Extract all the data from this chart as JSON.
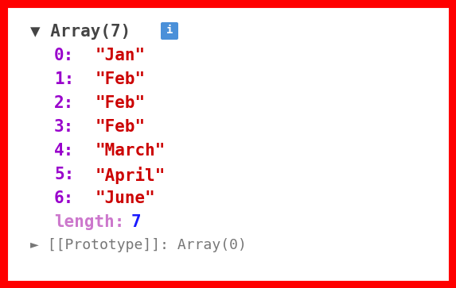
{
  "bg_color": "#ffffff",
  "border_color": "#ff0000",
  "border_lw": 8,
  "header_text": "▼ Array(7)",
  "header_color": "#444444",
  "info_badge_color": "#4a90d9",
  "info_badge_text": "i",
  "rows": [
    {
      "index": "0",
      "value": "\"Jan\""
    },
    {
      "index": "1",
      "value": "\"Feb\""
    },
    {
      "index": "2",
      "value": "\"Feb\""
    },
    {
      "index": "3",
      "value": "\"Feb\""
    },
    {
      "index": "4",
      "value": "\"March\""
    },
    {
      "index": "5",
      "value": "\"April\""
    },
    {
      "index": "6",
      "value": "\"June\""
    }
  ],
  "length_label": "length",
  "length_value": "7",
  "prototype_text": "► [[Prototype]]: Array(0)",
  "index_color": "#9900cc",
  "value_color": "#cc0000",
  "length_label_color": "#cc77cc",
  "length_value_color": "#1a1aff",
  "prototype_color": "#777777",
  "font_size": 15,
  "header_font_size": 15,
  "badge_font_size": 10,
  "proto_font_size": 13,
  "fig_width": 5.73,
  "fig_height": 3.63,
  "dpi": 100
}
